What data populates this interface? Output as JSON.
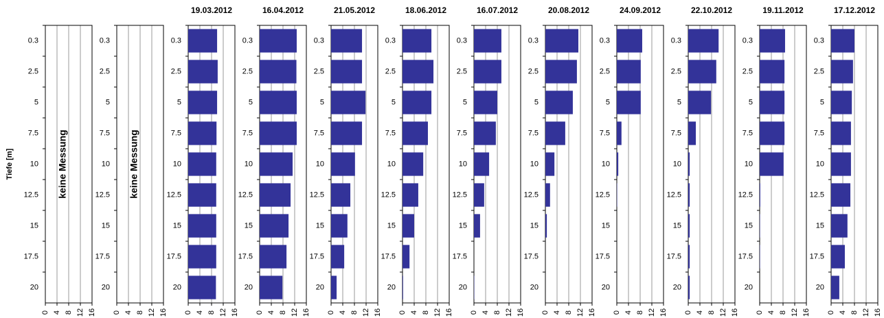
{
  "chart_data": [
    {
      "type": "bar",
      "orientation": "horizontal",
      "annotation": "keine Messung",
      "ylabel": "Tiefe [m]",
      "color": "#333399",
      "grid": true,
      "categories": [
        "0.3",
        "2.5",
        "5",
        "7.5",
        "10",
        "12.5",
        "15",
        "17.5",
        "20"
      ],
      "values": [
        null,
        null,
        null,
        null,
        null,
        null,
        null,
        null,
        null
      ],
      "xlim": [
        0,
        16
      ],
      "xticks": [
        0,
        4,
        8,
        12,
        16
      ]
    },
    {
      "type": "bar",
      "orientation": "horizontal",
      "annotation": "keine Messung",
      "color": "#333399",
      "grid": true,
      "categories": [
        "0.3",
        "2.5",
        "5",
        "7.5",
        "10",
        "12.5",
        "15",
        "17.5",
        "20"
      ],
      "values": [
        null,
        null,
        null,
        null,
        null,
        null,
        null,
        null,
        null
      ],
      "xlim": [
        0,
        16
      ],
      "xticks": [
        0,
        4,
        8,
        12,
        16
      ]
    },
    {
      "type": "bar",
      "orientation": "horizontal",
      "title": "19.03.2012",
      "color": "#333399",
      "grid": true,
      "categories": [
        "0.3",
        "2.5",
        "5",
        "7.5",
        "10",
        "12.5",
        "15",
        "17.5",
        "20"
      ],
      "values": [
        9.9,
        10.1,
        9.9,
        9.7,
        9.6,
        9.6,
        9.6,
        9.6,
        9.5
      ],
      "xlim": [
        0,
        16
      ],
      "xticks": [
        0,
        4,
        8,
        12,
        16
      ]
    },
    {
      "type": "bar",
      "orientation": "horizontal",
      "title": "16.04.2012",
      "color": "#333399",
      "grid": true,
      "categories": [
        "0.3",
        "2.5",
        "5",
        "7.5",
        "10",
        "12.5",
        "15",
        "17.5",
        "20"
      ],
      "values": [
        12.7,
        12.6,
        12.7,
        12.7,
        11.3,
        10.6,
        9.9,
        9.2,
        7.8
      ],
      "xlim": [
        0,
        16
      ],
      "xticks": [
        0,
        4,
        8,
        12,
        16
      ]
    },
    {
      "type": "bar",
      "orientation": "horizontal",
      "title": "21.05.2012",
      "color": "#333399",
      "grid": true,
      "categories": [
        "0.3",
        "2.5",
        "5",
        "7.5",
        "10",
        "12.5",
        "15",
        "17.5",
        "20"
      ],
      "values": [
        10.6,
        10.6,
        11.8,
        10.6,
        8.2,
        6.6,
        5.6,
        4.5,
        1.9
      ],
      "xlim": [
        0,
        16
      ],
      "xticks": [
        0,
        4,
        8,
        12,
        16
      ]
    },
    {
      "type": "bar",
      "orientation": "horizontal",
      "title": "18.06.2012",
      "color": "#333399",
      "grid": true,
      "categories": [
        "0.3",
        "2.5",
        "5",
        "7.5",
        "10",
        "12.5",
        "15",
        "17.5",
        "20"
      ],
      "values": [
        9.9,
        10.6,
        9.9,
        8.7,
        7.1,
        5.4,
        4.0,
        2.4,
        0.2
      ],
      "xlim": [
        0,
        16
      ],
      "xticks": [
        0,
        4,
        8,
        12,
        16
      ]
    },
    {
      "type": "bar",
      "orientation": "horizontal",
      "title": "16.07.2012",
      "color": "#333399",
      "grid": true,
      "categories": [
        "0.3",
        "2.5",
        "5",
        "7.5",
        "10",
        "12.5",
        "15",
        "17.5",
        "20"
      ],
      "values": [
        9.4,
        9.4,
        8.0,
        7.5,
        5.2,
        3.5,
        2.1,
        0,
        0.1
      ],
      "xlim": [
        0,
        16
      ],
      "xticks": [
        0,
        4,
        8,
        12,
        16
      ]
    },
    {
      "type": "bar",
      "orientation": "horizontal",
      "title": "20.08.2012",
      "color": "#333399",
      "grid": true,
      "categories": [
        "0.3",
        "2.5",
        "5",
        "7.5",
        "10",
        "12.5",
        "15",
        "17.5",
        "20"
      ],
      "values": [
        11.3,
        10.8,
        9.4,
        6.8,
        3.1,
        1.6,
        0.5,
        0,
        0
      ],
      "xlim": [
        0,
        16
      ],
      "xticks": [
        0,
        4,
        8,
        12,
        16
      ]
    },
    {
      "type": "bar",
      "orientation": "horizontal",
      "title": "24.09.2012",
      "color": "#333399",
      "grid": true,
      "categories": [
        "0.3",
        "2.5",
        "5",
        "7.5",
        "10",
        "12.5",
        "15",
        "17.5",
        "20"
      ],
      "values": [
        8.7,
        8.2,
        8.2,
        1.6,
        0.5,
        0.1,
        0,
        0,
        0
      ],
      "xlim": [
        0,
        16
      ],
      "xticks": [
        0,
        4,
        8,
        12,
        16
      ]
    },
    {
      "type": "bar",
      "orientation": "horizontal",
      "title": "22.10.2012",
      "color": "#333399",
      "grid": true,
      "categories": [
        "0.3",
        "2.5",
        "5",
        "7.5",
        "10",
        "12.5",
        "15",
        "17.5",
        "20"
      ],
      "values": [
        10.4,
        9.6,
        7.8,
        2.6,
        0.5,
        0.5,
        0.5,
        0.5,
        0.5
      ],
      "xlim": [
        0,
        16
      ],
      "xticks": [
        0,
        4,
        8,
        12,
        16
      ]
    },
    {
      "type": "bar",
      "orientation": "horizontal",
      "title": "19.11.2012",
      "color": "#333399",
      "grid": true,
      "categories": [
        "0.3",
        "2.5",
        "5",
        "7.5",
        "10",
        "12.5",
        "15",
        "17.5",
        "20"
      ],
      "values": [
        8.7,
        8.5,
        8.5,
        8.5,
        8.2,
        0.2,
        0.1,
        0.1,
        0
      ],
      "xlim": [
        0,
        16
      ],
      "xticks": [
        0,
        4,
        8,
        12,
        16
      ]
    },
    {
      "type": "bar",
      "orientation": "horizontal",
      "title": "17.12.2012",
      "color": "#333399",
      "grid": true,
      "categories": [
        "0.3",
        "2.5",
        "5",
        "7.5",
        "10",
        "12.5",
        "15",
        "17.5",
        "20"
      ],
      "values": [
        8.0,
        7.5,
        7.1,
        6.8,
        6.8,
        6.6,
        5.6,
        4.7,
        2.8
      ],
      "xlim": [
        0,
        16
      ],
      "xticks": [
        0,
        4,
        8,
        12,
        16
      ]
    }
  ]
}
